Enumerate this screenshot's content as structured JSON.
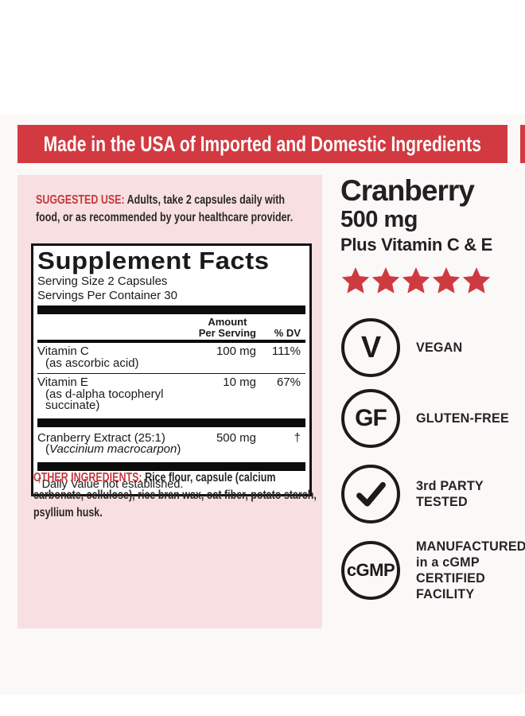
{
  "banner": {
    "text": "Made in the USA of Imported and Domestic Ingredients"
  },
  "suggested_use": {
    "heading": "SUGGESTED USE:",
    "body": " Adults, take 2 capsules daily with food, or as recommended by your healthcare provider."
  },
  "supplement_facts": {
    "title": "Supplement Facts",
    "serving_size": "Serving Size 2 Capsules",
    "servings_per_container": "Servings Per Container 30",
    "amount_header": [
      "Amount",
      "Per Serving"
    ],
    "dv_header": "% DV",
    "rows": [
      {
        "name": "Vitamin C",
        "detail": "(as ascorbic acid)",
        "amount": "100 mg",
        "dv": "111%"
      },
      {
        "name": "Vitamin E",
        "detail": "(as d-alpha tocopheryl succinate)",
        "amount": "10 mg",
        "dv": "67%"
      },
      {
        "name": "Cranberry Extract (25:1)",
        "detail_prefix": "(",
        "detail_italic": "Vaccinium macrocarpon",
        "detail_suffix": ")",
        "amount": "500 mg",
        "dv": "†"
      }
    ],
    "footnote_symbol": "†",
    "footnote_text": "Daily Value not established."
  },
  "other_ingredients": {
    "heading": "OTHER INGREDIENTS:",
    "body": " Rice flour, capsule (calcium carbonate, cellulose), rice bran wax, oat fiber, potato starch, psyllium husk."
  },
  "product": {
    "title": "Cranberry",
    "strength": "500 mg",
    "subtitle": "Plus Vitamin C & E",
    "rating": 5
  },
  "badges": [
    {
      "icon": "vegan-circle-icon",
      "glyph": "V",
      "label_lines": [
        "VEGAN"
      ]
    },
    {
      "icon": "gluten-free-circle-icon",
      "glyph": "GF",
      "label_lines": [
        "GLUTEN-FREE"
      ]
    },
    {
      "icon": "check-circle-icon",
      "glyph": "check",
      "label_lines": [
        "3rd PARTY",
        "TESTED"
      ]
    },
    {
      "icon": "cgmp-circle-icon",
      "glyph": "cGMP",
      "label_lines": [
        "MANUFACTURED",
        "in a cGMP",
        "CERTIFIED",
        "FACILITY"
      ]
    }
  ],
  "colors": {
    "red": "#d23940",
    "red_text": "#c8373d",
    "pink": "#f8e0e2",
    "ink": "#262223",
    "star": "#cf3940"
  }
}
